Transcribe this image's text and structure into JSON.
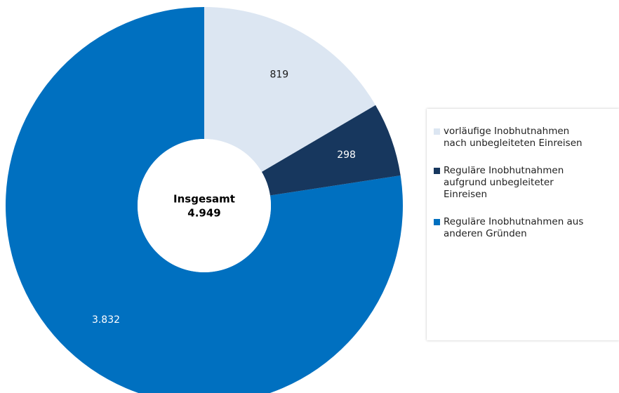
{
  "chart_data": {
    "type": "donut",
    "categories": [
      "vorläufige Inobhutnahmen nach unbegleiteten Einreisen",
      "Reguläre Inobhutnahmen aufgrund unbegleiteter Einreisen",
      "Reguläre Inobhutnahmen aus anderen Gründen"
    ],
    "values": [
      819,
      298,
      3832
    ],
    "value_labels": [
      "819",
      "298",
      "3.832"
    ],
    "colors": [
      "#dce6f2",
      "#17375e",
      "#0070c0"
    ],
    "label_colors": [
      "#1a1a1a",
      "#ffffff",
      "#ffffff"
    ],
    "center_title": "Insgesamt",
    "center_value": "4.949",
    "legend": "right"
  }
}
